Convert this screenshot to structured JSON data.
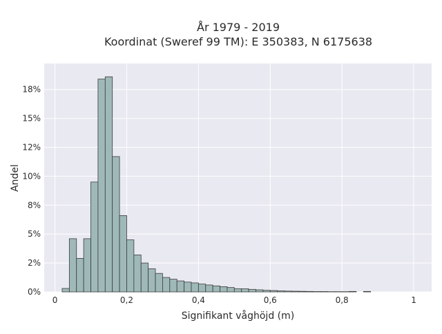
{
  "chart_data": {
    "type": "bar",
    "title_line1": "År 1979 - 2019",
    "title_line2": "Koordinat (Sweref 99 TM): E 350383, N 6175638",
    "xlabel": "Signifikant våghöjd (m)",
    "ylabel": "Andel",
    "xlim": [
      -0.03,
      1.05
    ],
    "ylim": [
      0,
      0.1975
    ],
    "x_ticks": [
      0,
      0.2,
      0.4,
      0.6,
      0.8,
      1
    ],
    "x_tick_labels": [
      "0",
      "0,2",
      "0,4",
      "0,6",
      "0,8",
      "1"
    ],
    "y_ticks": [
      0,
      0.025,
      0.05,
      0.075,
      0.1,
      0.125,
      0.15,
      0.175
    ],
    "y_tick_labels": [
      "0%",
      "2%",
      "5%",
      "8%",
      "10%",
      "12%",
      "15%",
      "18%"
    ],
    "bin_width": 0.02,
    "bin_starts": [
      0.02,
      0.04,
      0.06,
      0.08,
      0.1,
      0.12,
      0.14,
      0.16,
      0.18,
      0.2,
      0.22,
      0.24,
      0.26,
      0.28,
      0.3,
      0.32,
      0.34,
      0.36,
      0.38,
      0.4,
      0.42,
      0.44,
      0.46,
      0.48,
      0.5,
      0.52,
      0.54,
      0.56,
      0.58,
      0.6,
      0.62,
      0.64,
      0.66,
      0.68,
      0.7,
      0.72,
      0.74,
      0.76,
      0.78,
      0.8,
      0.82,
      0.84,
      0.86
    ],
    "values": [
      0.003,
      0.046,
      0.029,
      0.046,
      0.095,
      0.184,
      0.186,
      0.117,
      0.066,
      0.045,
      0.032,
      0.025,
      0.02,
      0.016,
      0.0125,
      0.011,
      0.0095,
      0.0085,
      0.0078,
      0.0068,
      0.006,
      0.0052,
      0.0045,
      0.0038,
      0.0028,
      0.0027,
      0.0022,
      0.0018,
      0.0014,
      0.0012,
      0.0009,
      0.0007,
      0.0006,
      0.0005,
      0.0004,
      0.0003,
      0.0003,
      0.0002,
      0.0002,
      0.0002,
      0.0004,
      0.0,
      0.0004
    ],
    "bar_color": "#9fb9b8",
    "bar_edge_color": "#3a3a3a",
    "plot_bg": "#e9e9f1",
    "grid_color": "#ffffff",
    "grid": true
  }
}
